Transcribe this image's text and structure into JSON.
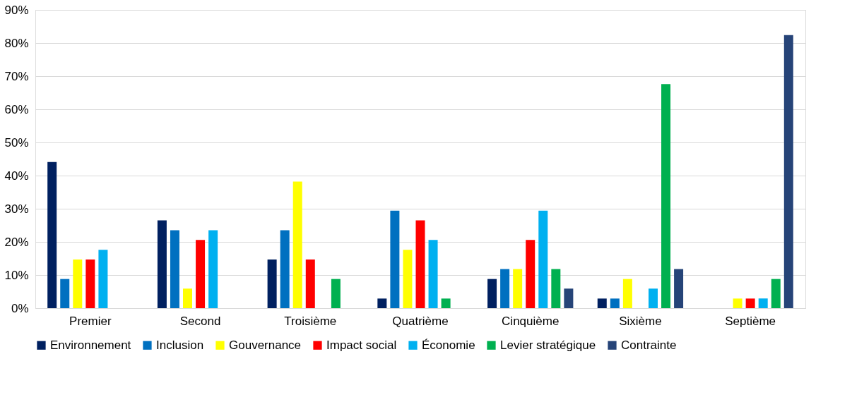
{
  "chart_data": {
    "type": "bar",
    "categories": [
      "Premier",
      "Second",
      "Troisième",
      "Quatrième",
      "Cinquième",
      "Sixième",
      "Septième"
    ],
    "series": [
      {
        "name": "Environnement",
        "color": "#002060",
        "values": [
          44.1,
          26.5,
          14.7,
          2.9,
          8.8,
          2.9,
          0
        ]
      },
      {
        "name": "Inclusion",
        "color": "#0070c0",
        "values": [
          8.8,
          23.5,
          23.5,
          29.4,
          11.8,
          2.9,
          0
        ]
      },
      {
        "name": "Gouvernance",
        "color": "#ffff00",
        "values": [
          14.7,
          5.9,
          38.2,
          17.6,
          11.8,
          8.8,
          2.9
        ]
      },
      {
        "name": "Impact social",
        "color": "#ff0000",
        "values": [
          14.7,
          20.6,
          14.7,
          26.5,
          20.6,
          0,
          2.9
        ]
      },
      {
        "name": "Économie",
        "color": "#00b0f0",
        "values": [
          17.6,
          23.5,
          0,
          20.6,
          29.4,
          5.9,
          2.9
        ]
      },
      {
        "name": "Levier stratégique",
        "color": "#00b050",
        "values": [
          0,
          0,
          8.8,
          2.9,
          11.8,
          67.6,
          8.8
        ]
      },
      {
        "name": "Contrainte",
        "color": "#264478",
        "values": [
          0,
          0,
          0,
          0,
          5.9,
          11.8,
          82.4
        ]
      }
    ],
    "ylim": [
      0,
      90
    ],
    "yticks": [
      {
        "value": 0,
        "label": "0%"
      },
      {
        "value": 10,
        "label": "10%"
      },
      {
        "value": 20,
        "label": "20%"
      },
      {
        "value": 30,
        "label": "30%"
      },
      {
        "value": 40,
        "label": "40%"
      },
      {
        "value": 50,
        "label": "50%"
      },
      {
        "value": 60,
        "label": "60%"
      },
      {
        "value": 70,
        "label": "70%"
      },
      {
        "value": 80,
        "label": "80%"
      },
      {
        "value": 90,
        "label": "90%"
      }
    ],
    "grid": "y",
    "legend": "bottom"
  }
}
